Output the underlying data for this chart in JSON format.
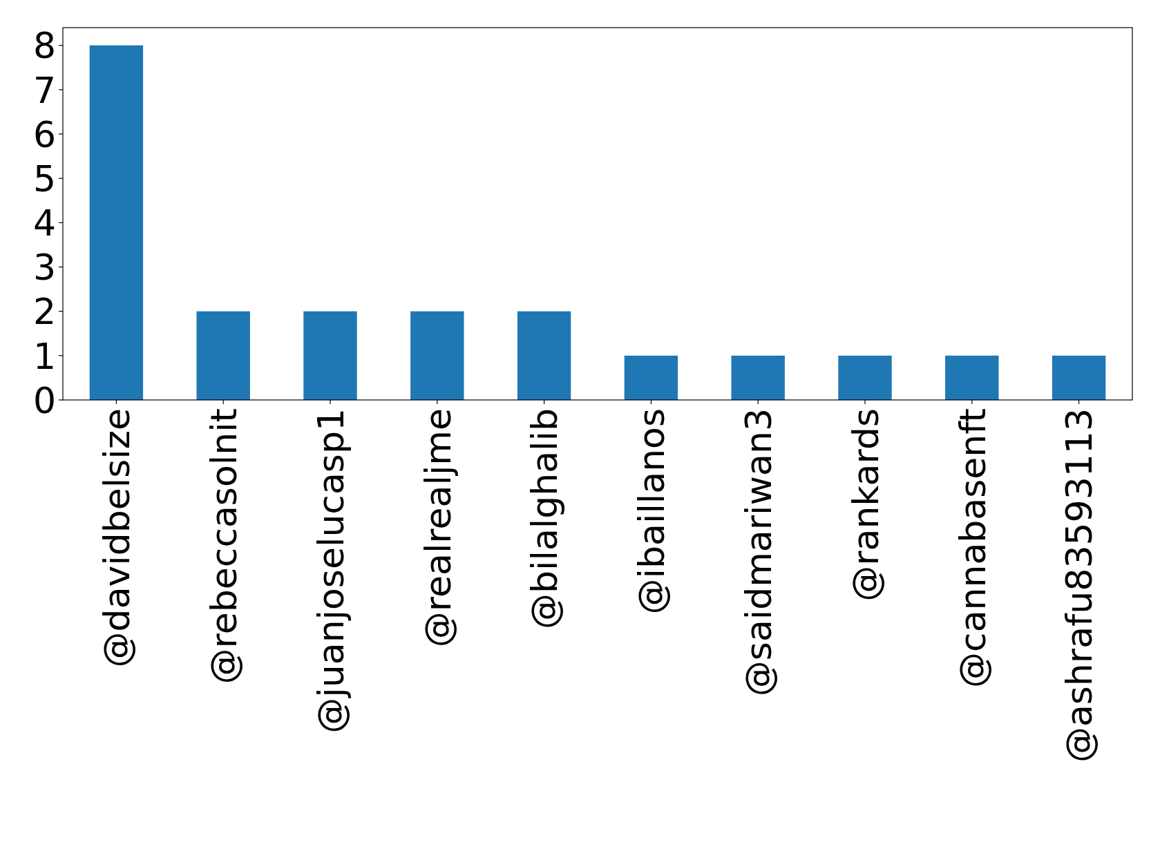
{
  "chart_data": {
    "type": "bar",
    "categories": [
      "@davidbelsize",
      "@rebeccasolnit",
      "@juanjoselucasp1",
      "@realrealjme",
      "@bilalghalib",
      "@ibaillanos",
      "@saidmariwan3",
      "@rankards",
      "@cannabasenft",
      "@ashrafu83593113"
    ],
    "values": [
      8,
      2,
      2,
      2,
      2,
      1,
      1,
      1,
      1,
      1
    ],
    "color": "#1f77b4",
    "ylim": [
      0,
      8.4
    ],
    "yticks": [
      0,
      1,
      2,
      3,
      4,
      5,
      6,
      7,
      8
    ],
    "grid": false
  }
}
